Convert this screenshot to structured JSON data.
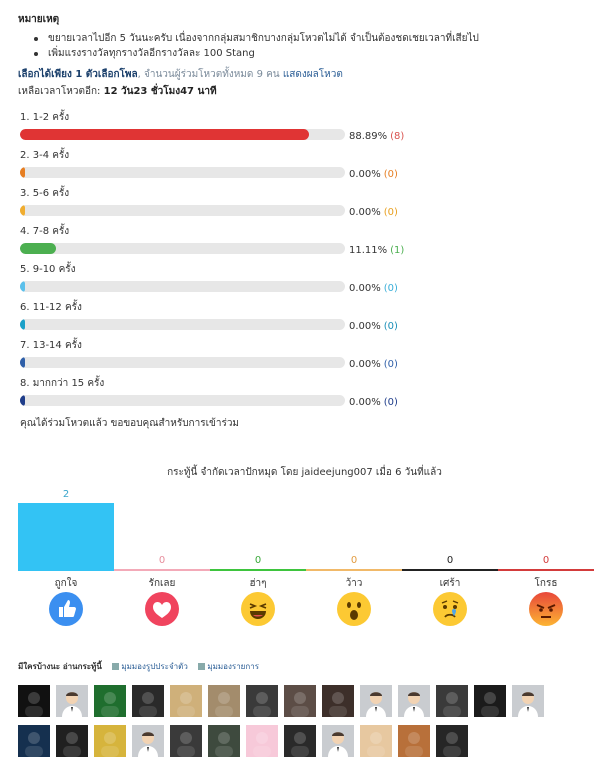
{
  "note": {
    "title": "หมายเหตุ",
    "items": [
      "ขยายเวลาไปอีก 5 วันนะครับ เนื่องจากกลุ่มสมาชิกบางกลุ่มโหวตไม่ได้ จำเป็นต้องชดเชยเวลาที่เสียไป",
      "เพิ่มแรงรางวัลทุกรางวัลอีกรางวัลละ 100 Stang"
    ]
  },
  "poll": {
    "choose": "เลือกได้เพียง 1 ตัวเลือกโพล",
    "voters": ", จำนวนผู้ร่วมโหวตทั้งหมด 9 คน",
    "show_results": "แสดงผลโหวต",
    "remain_prefix": "เหลือเวลาโหวตอีก:",
    "remain_value": "12 วัน23 ชั่วโมง47 นาที",
    "voted_msg": "คุณได้ร่วมโหวตแล้ว ขอขอบคุณสำหรับการเข้าร่วม",
    "options": [
      {
        "label": "1.  1-2 ครั้ง",
        "fraction": 0.8889,
        "pct": "88.89%",
        "count": "(8)",
        "color": "#e03434",
        "count_color": "#d9534f"
      },
      {
        "label": "2.  3-4 ครั้ง",
        "fraction": 0,
        "pct": "0.00%",
        "count": "(0)",
        "color": "#e67e22",
        "count_color": "#e67e22"
      },
      {
        "label": "3.  5-6 ครั้ง",
        "fraction": 0,
        "pct": "0.00%",
        "count": "(0)",
        "color": "#f0ad30",
        "count_color": "#e8a020"
      },
      {
        "label": "4.  7-8 ครั้ง",
        "fraction": 0.1111,
        "pct": "11.11%",
        "count": "(1)",
        "color": "#4caf50",
        "count_color": "#4caf50"
      },
      {
        "label": "5.  9-10 ครั้ง",
        "fraction": 0,
        "pct": "0.00%",
        "count": "(0)",
        "color": "#5bc0eb",
        "count_color": "#3aaed8"
      },
      {
        "label": "6.  11-12 ครั้ง",
        "fraction": 0,
        "pct": "0.00%",
        "count": "(0)",
        "color": "#1aa0c8",
        "count_color": "#1a8fb8"
      },
      {
        "label": "7.  13-14 ครั้ง",
        "fraction": 0,
        "pct": "0.00%",
        "count": "(0)",
        "color": "#2f5fa8",
        "count_color": "#2f5fa8"
      },
      {
        "label": "8.  มากกว่า 15 ครั้ง",
        "fraction": 0,
        "pct": "0.00%",
        "count": "(0)",
        "color": "#1f3d8a",
        "count_color": "#1f3d8a"
      }
    ]
  },
  "timeout": "กระทู้นี้ จำกัดเวลาปักหมุด โดย jaideejung007 เมื่อ 6 วันที่แล้ว",
  "reactions": {
    "max": 2,
    "items": [
      {
        "label": "ถูกใจ",
        "count": "2",
        "value": 2,
        "color": "#33c3f4",
        "count_color": "#3aa6cc",
        "icon": "like-icon"
      },
      {
        "label": "รักเลย",
        "count": "0",
        "value": 0,
        "color": "#f3aab8",
        "count_color": "#e78d9c",
        "icon": "love-icon"
      },
      {
        "label": "ฮ่าๆ",
        "count": "0",
        "value": 0,
        "color": "#3ec43e",
        "count_color": "#3aa93a",
        "icon": "haha-icon"
      },
      {
        "label": "ว้าว",
        "count": "0",
        "value": 0,
        "color": "#f1b969",
        "count_color": "#e29b3f",
        "icon": "wow-icon"
      },
      {
        "label": "เศร้า",
        "count": "0",
        "value": 0,
        "color": "#222222",
        "count_color": "#222222",
        "icon": "sad-icon"
      },
      {
        "label": "โกรธ",
        "count": "0",
        "value": 0,
        "color": "#d33b3b",
        "count_color": "#d33b3b",
        "icon": "angry-icon"
      }
    ]
  },
  "viewers": {
    "title": "มีใครบ้างนะ อ่านกระทู้นี้",
    "view1": "มุมมองรูปประจำตัว",
    "view2": "มุมมองรายการ"
  },
  "avatars": [
    [
      "#111111",
      "#c9ccd0",
      "#1f6e2e",
      "#2a2a2a",
      "#cfb07a",
      "#a38c6c",
      "#3a3a3a",
      "#5c4d46",
      "#3d2f2a",
      "#c9ccd0",
      "#c9ccd0",
      "#3a3a3a",
      "#1b1b1b",
      "#c9ccd0"
    ],
    [
      "#15304f",
      "#202020",
      "#d6b43c",
      "#c9ccd0",
      "#3a3a3a",
      "#3e4a3e",
      "#f7c9d9",
      "#2a2a2a",
      "#c9ccd0",
      "#e7c8a0",
      "#b8703a",
      "#262626"
    ]
  ]
}
